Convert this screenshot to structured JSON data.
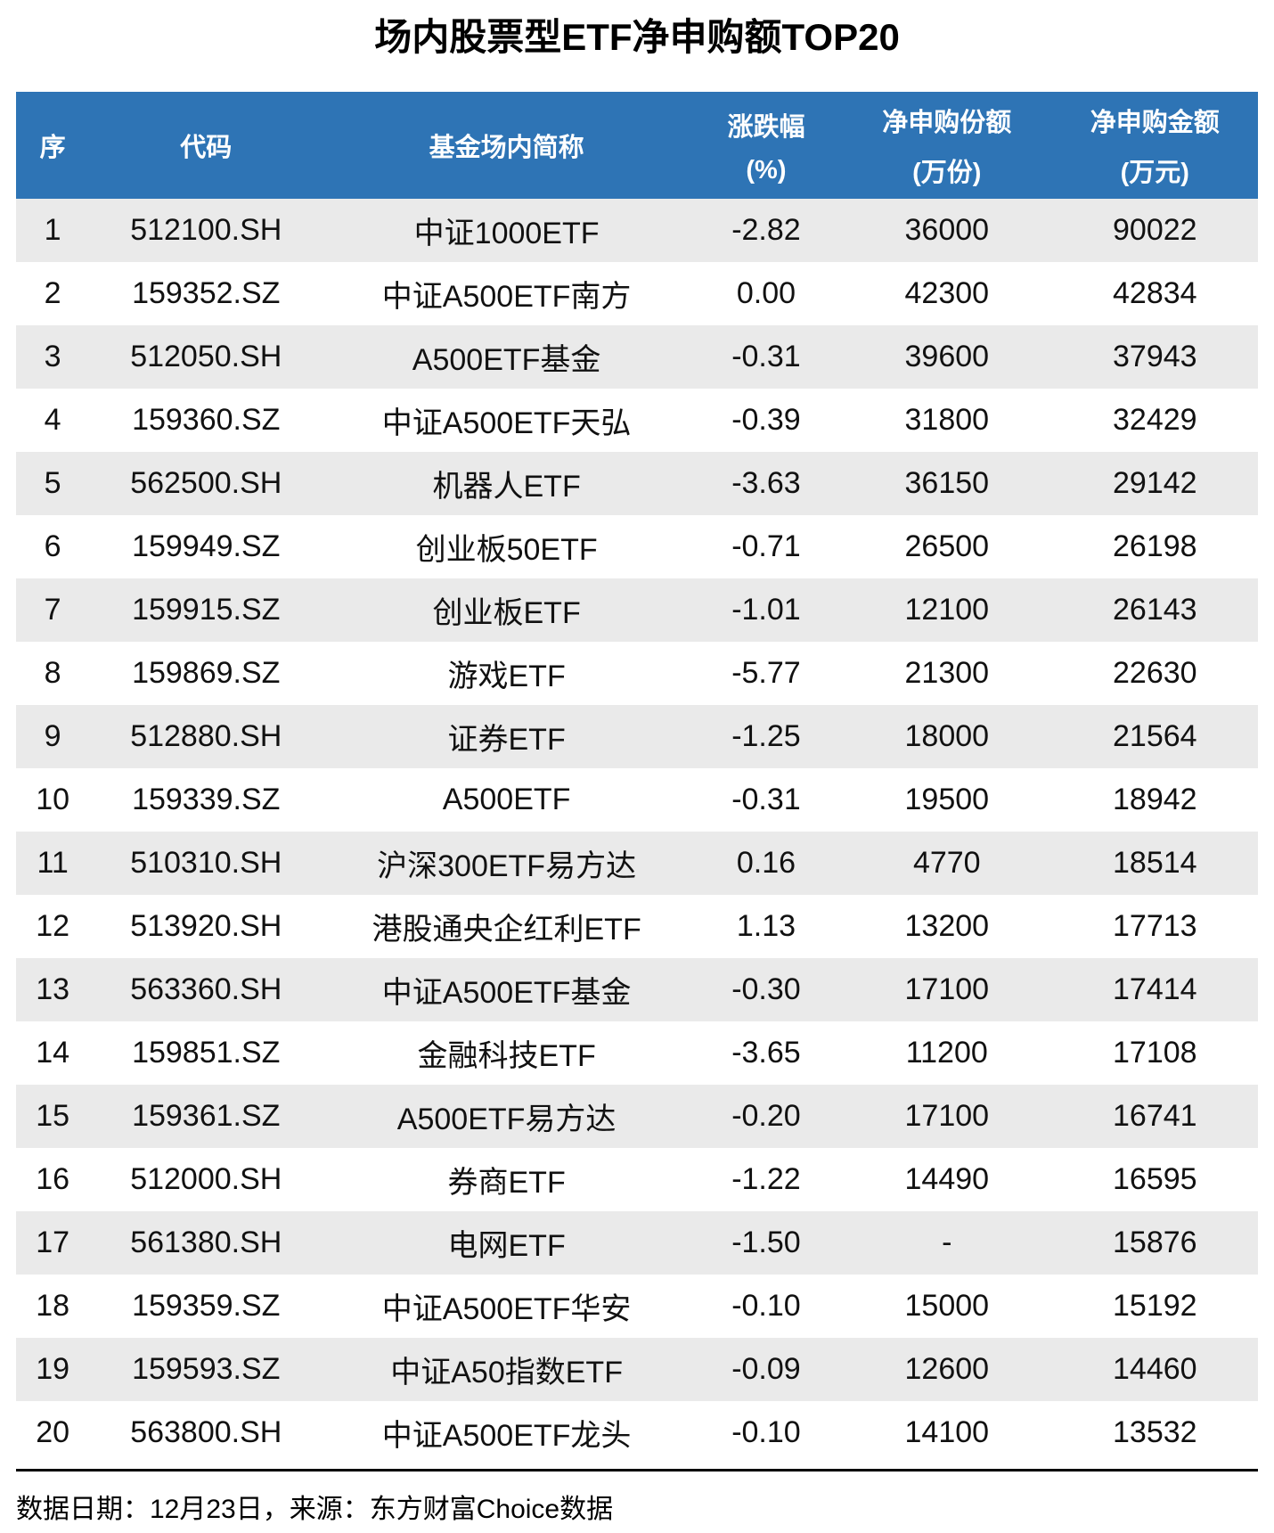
{
  "title": "场内股票型ETF净申购额TOP20",
  "colors": {
    "header_bg": "#2E74B5",
    "header_text": "#FFFFFF",
    "row_alt_bg": "#EAEAEA",
    "row_bg": "#FFFFFF",
    "text": "#111111",
    "rule": "#000000"
  },
  "footer": {
    "text": "数据日期：12月23日，来源：东方财富Choice数据"
  },
  "chart_data": {
    "type": "table",
    "title": "场内股票型ETF净申购额TOP20",
    "legend_position": "none",
    "grid": "alternating-row-shading",
    "columns": [
      {
        "id": "seq",
        "line1": "序",
        "line2": ""
      },
      {
        "id": "code",
        "line1": "代码",
        "line2": ""
      },
      {
        "id": "name",
        "line1": "基金场内简称",
        "line2": ""
      },
      {
        "id": "change",
        "line1": "涨跌幅",
        "line2": "(%)"
      },
      {
        "id": "shares",
        "line1": "净申购份额",
        "line2": "(万份)"
      },
      {
        "id": "amount",
        "line1": "净申购金额",
        "line2": "(万元)"
      }
    ],
    "rows": [
      {
        "seq": "1",
        "code": "512100.SH",
        "name": "中证1000ETF",
        "change": "-2.82",
        "shares": "36000",
        "amount": "90022"
      },
      {
        "seq": "2",
        "code": "159352.SZ",
        "name": "中证A500ETF南方",
        "change": "0.00",
        "shares": "42300",
        "amount": "42834"
      },
      {
        "seq": "3",
        "code": "512050.SH",
        "name": "A500ETF基金",
        "change": "-0.31",
        "shares": "39600",
        "amount": "37943"
      },
      {
        "seq": "4",
        "code": "159360.SZ",
        "name": "中证A500ETF天弘",
        "change": "-0.39",
        "shares": "31800",
        "amount": "32429"
      },
      {
        "seq": "5",
        "code": "562500.SH",
        "name": "机器人ETF",
        "change": "-3.63",
        "shares": "36150",
        "amount": "29142"
      },
      {
        "seq": "6",
        "code": "159949.SZ",
        "name": "创业板50ETF",
        "change": "-0.71",
        "shares": "26500",
        "amount": "26198"
      },
      {
        "seq": "7",
        "code": "159915.SZ",
        "name": "创业板ETF",
        "change": "-1.01",
        "shares": "12100",
        "amount": "26143"
      },
      {
        "seq": "8",
        "code": "159869.SZ",
        "name": "游戏ETF",
        "change": "-5.77",
        "shares": "21300",
        "amount": "22630"
      },
      {
        "seq": "9",
        "code": "512880.SH",
        "name": "证券ETF",
        "change": "-1.25",
        "shares": "18000",
        "amount": "21564"
      },
      {
        "seq": "10",
        "code": "159339.SZ",
        "name": "A500ETF",
        "change": "-0.31",
        "shares": "19500",
        "amount": "18942"
      },
      {
        "seq": "11",
        "code": "510310.SH",
        "name": "沪深300ETF易方达",
        "change": "0.16",
        "shares": "4770",
        "amount": "18514"
      },
      {
        "seq": "12",
        "code": "513920.SH",
        "name": "港股通央企红利ETF",
        "change": "1.13",
        "shares": "13200",
        "amount": "17713"
      },
      {
        "seq": "13",
        "code": "563360.SH",
        "name": "中证A500ETF基金",
        "change": "-0.30",
        "shares": "17100",
        "amount": "17414"
      },
      {
        "seq": "14",
        "code": "159851.SZ",
        "name": "金融科技ETF",
        "change": "-3.65",
        "shares": "11200",
        "amount": "17108"
      },
      {
        "seq": "15",
        "code": "159361.SZ",
        "name": "A500ETF易方达",
        "change": "-0.20",
        "shares": "17100",
        "amount": "16741"
      },
      {
        "seq": "16",
        "code": "512000.SH",
        "name": "券商ETF",
        "change": "-1.22",
        "shares": "14490",
        "amount": "16595"
      },
      {
        "seq": "17",
        "code": "561380.SH",
        "name": "电网ETF",
        "change": "-1.50",
        "shares": "-",
        "amount": "15876"
      },
      {
        "seq": "18",
        "code": "159359.SZ",
        "name": "中证A500ETF华安",
        "change": "-0.10",
        "shares": "15000",
        "amount": "15192"
      },
      {
        "seq": "19",
        "code": "159593.SZ",
        "name": "中证A50指数ETF",
        "change": "-0.09",
        "shares": "12600",
        "amount": "14460"
      },
      {
        "seq": "20",
        "code": "563800.SH",
        "name": "中证A500ETF龙头",
        "change": "-0.10",
        "shares": "14100",
        "amount": "13532"
      }
    ]
  }
}
